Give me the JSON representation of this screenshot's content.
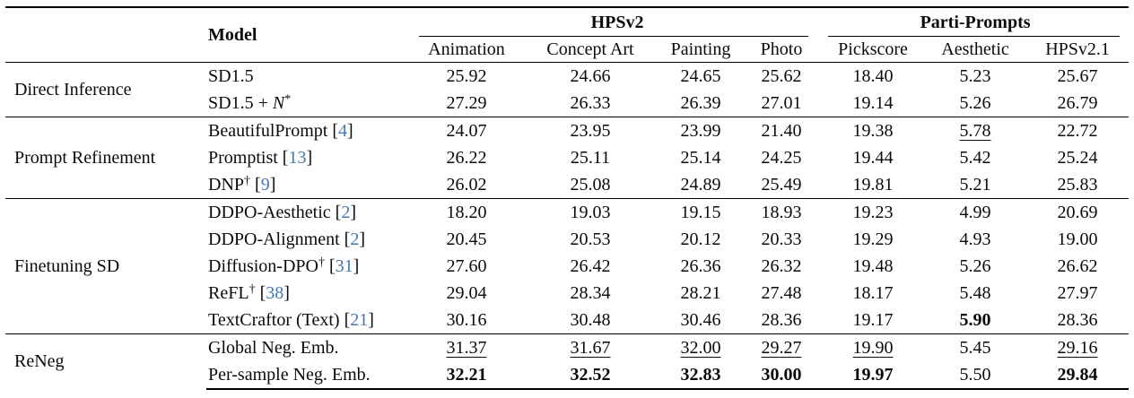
{
  "accent_colors": {
    "citation_blue": "#4479B2",
    "text": "#0a0a0a",
    "rule": "#000000"
  },
  "table": {
    "headers": {
      "model": "Model",
      "group1": "HPSv2",
      "group1_cols": [
        "Animation",
        "Concept Art",
        "Painting",
        "Photo"
      ],
      "group2": "Parti-Prompts",
      "group2_cols": [
        "Pickscore",
        "Aesthetic",
        "HPSv2.1"
      ]
    },
    "sections": [
      {
        "label": "Direct Inference",
        "rows": [
          {
            "model": {
              "base": "SD1.5"
            },
            "values": [
              {
                "v": "25.92",
                "s": ""
              },
              {
                "v": "24.66",
                "s": ""
              },
              {
                "v": "24.65",
                "s": ""
              },
              {
                "v": "25.62",
                "s": ""
              },
              {
                "v": "18.40",
                "s": ""
              },
              {
                "v": "5.23",
                "s": ""
              },
              {
                "v": "25.67",
                "s": ""
              }
            ]
          },
          {
            "model": {
              "base": "SD1.5 + ",
              "it": "N",
              "sup": "*"
            },
            "values": [
              {
                "v": "27.29",
                "s": ""
              },
              {
                "v": "26.33",
                "s": ""
              },
              {
                "v": "26.39",
                "s": ""
              },
              {
                "v": "27.01",
                "s": ""
              },
              {
                "v": "19.14",
                "s": ""
              },
              {
                "v": "5.26",
                "s": ""
              },
              {
                "v": "26.79",
                "s": ""
              }
            ]
          }
        ]
      },
      {
        "label": "Prompt Refinement",
        "rows": [
          {
            "model": {
              "base": "BeautifulPrompt",
              "cite": "4"
            },
            "values": [
              {
                "v": "24.07",
                "s": ""
              },
              {
                "v": "23.95",
                "s": ""
              },
              {
                "v": "23.99",
                "s": ""
              },
              {
                "v": "21.40",
                "s": ""
              },
              {
                "v": "19.38",
                "s": ""
              },
              {
                "v": "5.78",
                "s": "u"
              },
              {
                "v": "22.72",
                "s": ""
              }
            ]
          },
          {
            "model": {
              "base": "Promptist",
              "cite": "13"
            },
            "values": [
              {
                "v": "26.22",
                "s": ""
              },
              {
                "v": "25.11",
                "s": ""
              },
              {
                "v": "25.14",
                "s": ""
              },
              {
                "v": "24.25",
                "s": ""
              },
              {
                "v": "19.44",
                "s": ""
              },
              {
                "v": "5.42",
                "s": ""
              },
              {
                "v": "25.24",
                "s": ""
              }
            ]
          },
          {
            "model": {
              "base": "DNP",
              "sup": "†",
              "cite": "9"
            },
            "values": [
              {
                "v": "26.02",
                "s": ""
              },
              {
                "v": "25.08",
                "s": ""
              },
              {
                "v": "24.89",
                "s": ""
              },
              {
                "v": "25.49",
                "s": ""
              },
              {
                "v": "19.81",
                "s": ""
              },
              {
                "v": "5.21",
                "s": ""
              },
              {
                "v": "25.83",
                "s": ""
              }
            ]
          }
        ]
      },
      {
        "label": "Finetuning SD",
        "rows": [
          {
            "model": {
              "base": "DDPO-Aesthetic",
              "cite": "2"
            },
            "values": [
              {
                "v": "18.20",
                "s": ""
              },
              {
                "v": "19.03",
                "s": ""
              },
              {
                "v": "19.15",
                "s": ""
              },
              {
                "v": "18.93",
                "s": ""
              },
              {
                "v": "19.23",
                "s": ""
              },
              {
                "v": "4.99",
                "s": ""
              },
              {
                "v": "20.69",
                "s": ""
              }
            ]
          },
          {
            "model": {
              "base": "DDPO-Alignment",
              "cite": "2"
            },
            "values": [
              {
                "v": "20.45",
                "s": ""
              },
              {
                "v": "20.53",
                "s": ""
              },
              {
                "v": "20.12",
                "s": ""
              },
              {
                "v": "20.33",
                "s": ""
              },
              {
                "v": "19.29",
                "s": ""
              },
              {
                "v": "4.93",
                "s": ""
              },
              {
                "v": "19.00",
                "s": ""
              }
            ]
          },
          {
            "model": {
              "base": "Diffusion-DPO",
              "sup": "†",
              "cite": "31"
            },
            "values": [
              {
                "v": "27.60",
                "s": ""
              },
              {
                "v": "26.42",
                "s": ""
              },
              {
                "v": "26.36",
                "s": ""
              },
              {
                "v": "26.32",
                "s": ""
              },
              {
                "v": "19.48",
                "s": ""
              },
              {
                "v": "5.26",
                "s": ""
              },
              {
                "v": "26.62",
                "s": ""
              }
            ]
          },
          {
            "model": {
              "base": "ReFL",
              "sup": "†",
              "cite": "38"
            },
            "values": [
              {
                "v": "29.04",
                "s": ""
              },
              {
                "v": "28.34",
                "s": ""
              },
              {
                "v": "28.21",
                "s": ""
              },
              {
                "v": "27.48",
                "s": ""
              },
              {
                "v": "18.17",
                "s": ""
              },
              {
                "v": "5.48",
                "s": ""
              },
              {
                "v": "27.97",
                "s": ""
              }
            ]
          },
          {
            "model": {
              "base": "TextCraftor (Text)",
              "cite": "21"
            },
            "values": [
              {
                "v": "30.16",
                "s": ""
              },
              {
                "v": "30.48",
                "s": ""
              },
              {
                "v": "30.46",
                "s": ""
              },
              {
                "v": "28.36",
                "s": ""
              },
              {
                "v": "19.17",
                "s": ""
              },
              {
                "v": "5.90",
                "s": "b"
              },
              {
                "v": "28.36",
                "s": ""
              }
            ]
          }
        ]
      },
      {
        "label": "ReNeg",
        "rows": [
          {
            "model": {
              "base": "Global Neg. Emb."
            },
            "values": [
              {
                "v": "31.37",
                "s": "u"
              },
              {
                "v": "31.67",
                "s": "u"
              },
              {
                "v": "32.00",
                "s": "u"
              },
              {
                "v": "29.27",
                "s": "u"
              },
              {
                "v": "19.90",
                "s": "u"
              },
              {
                "v": "5.45",
                "s": ""
              },
              {
                "v": "29.16",
                "s": "u"
              }
            ]
          },
          {
            "model": {
              "base": "Per-sample Neg. Emb."
            },
            "values": [
              {
                "v": "32.21",
                "s": "b"
              },
              {
                "v": "32.52",
                "s": "b"
              },
              {
                "v": "32.83",
                "s": "b"
              },
              {
                "v": "30.00",
                "s": "b"
              },
              {
                "v": "19.97",
                "s": "b"
              },
              {
                "v": "5.50",
                "s": ""
              },
              {
                "v": "29.84",
                "s": "b"
              }
            ]
          }
        ]
      }
    ]
  }
}
